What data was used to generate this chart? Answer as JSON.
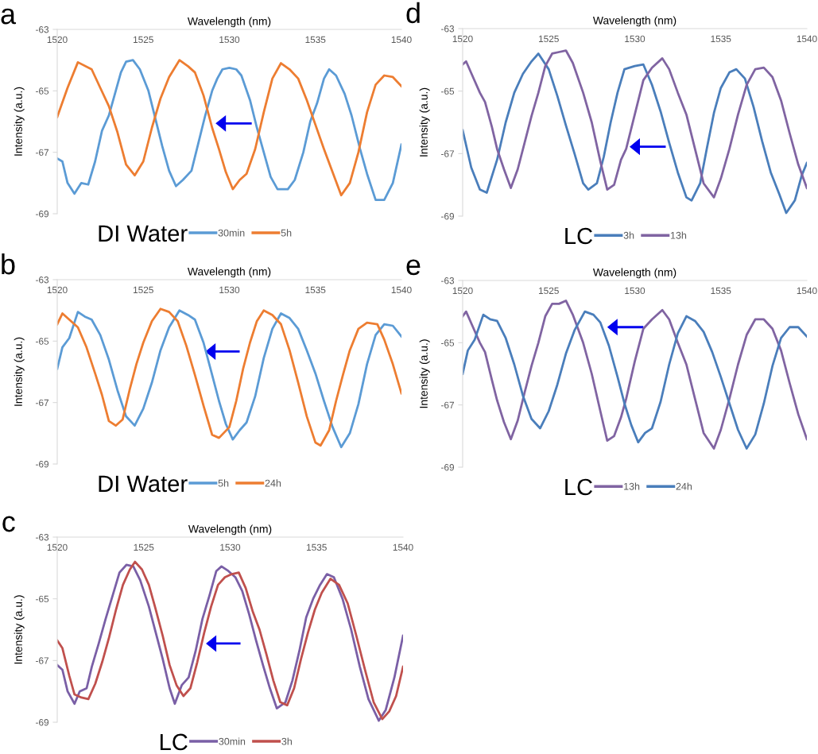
{
  "chart_data": [
    {
      "type": "line",
      "title": "a",
      "xlabel": "Wavelength (nm)",
      "ylabel": "Intensity (a.u.)",
      "legend_title": "DI Water",
      "legend": "bottom",
      "xlim": [
        1520,
        1540
      ],
      "xticks": [
        1520,
        1525,
        1530,
        1535,
        1540
      ],
      "ylim": [
        -69,
        -63
      ],
      "yticks": [
        -63,
        -65,
        -67,
        -69
      ],
      "series": [
        {
          "name": "30min",
          "color": "#5b9bd5",
          "x": [
            1520.0,
            1520.3,
            1520.6,
            1521.0,
            1521.4,
            1521.8,
            1522.2,
            1522.6,
            1523.0,
            1523.4,
            1523.7,
            1524.0,
            1524.4,
            1524.8,
            1525.3,
            1525.7,
            1526.1,
            1526.5,
            1526.9,
            1527.3,
            1527.8,
            1528.2,
            1528.6,
            1529.0,
            1529.3,
            1529.6,
            1530.0,
            1530.4,
            1530.7,
            1531.2,
            1531.6,
            1532.0,
            1532.4,
            1532.8,
            1533.4,
            1533.8,
            1534.3,
            1534.7,
            1535.1,
            1535.5,
            1535.8,
            1536.2,
            1536.7,
            1537.1,
            1537.6,
            1538.0,
            1538.5,
            1539.0,
            1539.5,
            1540.0
          ],
          "values": [
            -67.2,
            -67.3,
            -68.0,
            -68.35,
            -68.0,
            -68.05,
            -67.3,
            -66.3,
            -65.8,
            -65.0,
            -64.4,
            -64.05,
            -64.0,
            -64.3,
            -65.0,
            -65.9,
            -66.8,
            -67.6,
            -68.1,
            -67.9,
            -67.6,
            -66.7,
            -65.8,
            -65.0,
            -64.6,
            -64.3,
            -64.25,
            -64.3,
            -64.5,
            -65.3,
            -66.2,
            -67.0,
            -67.8,
            -68.2,
            -68.2,
            -67.9,
            -67.0,
            -66.0,
            -65.4,
            -64.6,
            -64.3,
            -64.5,
            -65.1,
            -65.8,
            -66.9,
            -67.7,
            -68.55,
            -68.55,
            -68.0,
            -66.75
          ]
        },
        {
          "name": "5h",
          "color": "#ed7d31",
          "x": [
            1520.0,
            1520.6,
            1521.2,
            1522.0,
            1522.5,
            1523.0,
            1523.5,
            1524.0,
            1524.5,
            1525.0,
            1525.5,
            1526.0,
            1526.5,
            1527.1,
            1527.6,
            1528.0,
            1528.5,
            1529.0,
            1529.4,
            1529.8,
            1530.2,
            1530.6,
            1531.0,
            1531.5,
            1532.0,
            1532.5,
            1533.0,
            1533.5,
            1534.0,
            1534.5,
            1535.0,
            1535.5,
            1536.0,
            1536.5,
            1537.0,
            1537.5,
            1538.0,
            1538.5,
            1539.0,
            1539.5,
            1540.0
          ],
          "values": [
            -65.85,
            -64.9,
            -64.07,
            -64.3,
            -64.9,
            -65.5,
            -66.35,
            -67.4,
            -67.75,
            -67.3,
            -66.2,
            -65.25,
            -64.55,
            -64.0,
            -64.2,
            -64.4,
            -65.15,
            -66.2,
            -66.9,
            -67.65,
            -68.2,
            -67.9,
            -67.7,
            -66.9,
            -65.7,
            -64.6,
            -64.1,
            -64.3,
            -64.6,
            -65.3,
            -66.1,
            -66.9,
            -67.65,
            -68.4,
            -68.0,
            -67.0,
            -65.7,
            -64.8,
            -64.5,
            -64.55,
            -64.85
          ]
        }
      ]
    },
    {
      "type": "line",
      "title": "d",
      "xlabel": "Wavelength (nm)",
      "ylabel": "Intensity (a.u.)",
      "legend_title": "LC",
      "legend": "bottom",
      "xlim": [
        1520,
        1540
      ],
      "xticks": [
        1520,
        1525,
        1530,
        1535,
        1540
      ],
      "ylim": [
        -69,
        -63
      ],
      "yticks": [
        -63,
        -65,
        -67,
        -69
      ],
      "series": [
        {
          "name": "3h",
          "color": "#4a7ebb",
          "x": [
            1520.0,
            1520.5,
            1521.0,
            1521.4,
            1522.0,
            1522.5,
            1523.0,
            1523.5,
            1524.0,
            1524.4,
            1525.0,
            1525.5,
            1526.0,
            1526.5,
            1527.0,
            1527.3,
            1527.8,
            1528.2,
            1528.6,
            1529.0,
            1529.4,
            1530.0,
            1530.5,
            1531.0,
            1531.5,
            1532.0,
            1532.5,
            1533.0,
            1533.3,
            1533.8,
            1534.2,
            1534.6,
            1535.0,
            1535.5,
            1535.9,
            1536.4,
            1536.9,
            1537.4,
            1537.9,
            1538.4,
            1538.8,
            1539.3,
            1539.7,
            1540.0
          ],
          "values": [
            -66.25,
            -67.45,
            -68.15,
            -68.25,
            -67.2,
            -66.0,
            -65.05,
            -64.45,
            -64.05,
            -63.8,
            -64.3,
            -65.15,
            -66.1,
            -67.0,
            -67.95,
            -68.15,
            -67.95,
            -67.1,
            -66.0,
            -65.05,
            -64.3,
            -64.2,
            -64.15,
            -64.8,
            -65.65,
            -66.65,
            -67.6,
            -68.4,
            -68.5,
            -67.95,
            -66.8,
            -65.7,
            -64.9,
            -64.4,
            -64.3,
            -64.6,
            -65.5,
            -66.6,
            -67.6,
            -68.3,
            -68.9,
            -68.5,
            -67.7,
            -67.3
          ]
        },
        {
          "name": "13h",
          "color": "#8064a2",
          "x": [
            1520.0,
            1520.2,
            1520.6,
            1521.0,
            1521.3,
            1521.7,
            1522.0,
            1522.4,
            1522.8,
            1523.2,
            1523.6,
            1524.0,
            1524.4,
            1524.8,
            1525.2,
            1525.6,
            1526.0,
            1526.4,
            1527.0,
            1527.5,
            1528.0,
            1528.4,
            1528.8,
            1529.2,
            1529.5,
            1530.0,
            1530.5,
            1531.0,
            1531.6,
            1532.0,
            1532.5,
            1533.0,
            1533.5,
            1534.0,
            1534.6,
            1535.0,
            1535.5,
            1536.0,
            1536.5,
            1537.0,
            1537.5,
            1538.0,
            1538.5,
            1539.0,
            1539.5,
            1540.0
          ],
          "values": [
            -64.15,
            -64.05,
            -64.55,
            -65.05,
            -65.35,
            -66.15,
            -66.85,
            -67.5,
            -68.1,
            -67.5,
            -66.65,
            -65.8,
            -65.05,
            -64.2,
            -63.8,
            -63.75,
            -63.7,
            -64.1,
            -65.05,
            -66.0,
            -67.25,
            -68.15,
            -68.0,
            -67.2,
            -66.85,
            -65.75,
            -64.65,
            -64.25,
            -63.95,
            -64.3,
            -65.05,
            -65.75,
            -66.85,
            -67.95,
            -68.4,
            -67.8,
            -66.85,
            -65.75,
            -64.8,
            -64.3,
            -64.25,
            -64.55,
            -65.3,
            -66.35,
            -67.35,
            -68.1
          ]
        }
      ]
    },
    {
      "type": "line",
      "title": "b",
      "xlabel": "Wavelength (nm)",
      "ylabel": "Intensity (a.u.)",
      "legend_title": "DI Water",
      "legend": "bottom",
      "xlim": [
        1520,
        1540
      ],
      "xticks": [
        1520,
        1525,
        1530,
        1535,
        1540
      ],
      "ylim": [
        -69,
        -63
      ],
      "yticks": [
        -63,
        -65,
        -67,
        -69
      ],
      "series": [
        {
          "name": "5h",
          "color": "#5b9bd5",
          "x": [
            1520.0,
            1520.3,
            1520.7,
            1521.2,
            1521.6,
            1522.0,
            1522.5,
            1523.0,
            1523.5,
            1524.0,
            1524.5,
            1525.0,
            1525.5,
            1526.0,
            1526.5,
            1527.1,
            1527.6,
            1528.0,
            1528.5,
            1529.0,
            1529.4,
            1529.8,
            1530.2,
            1530.6,
            1531.0,
            1531.5,
            1532.0,
            1532.5,
            1533.0,
            1533.5,
            1534.0,
            1534.5,
            1535.0,
            1535.5,
            1536.0,
            1536.5,
            1537.0,
            1537.5,
            1538.0,
            1538.5,
            1539.0,
            1539.5,
            1540.0
          ],
          "values": [
            -65.9,
            -65.2,
            -64.9,
            -64.05,
            -64.2,
            -64.3,
            -64.8,
            -65.6,
            -66.6,
            -67.45,
            -67.75,
            -67.2,
            -66.35,
            -65.3,
            -64.55,
            -64.0,
            -64.15,
            -64.3,
            -65.05,
            -66.1,
            -66.95,
            -67.7,
            -68.2,
            -67.9,
            -67.65,
            -66.8,
            -65.55,
            -64.6,
            -64.1,
            -64.25,
            -64.6,
            -65.3,
            -66.05,
            -66.95,
            -67.8,
            -68.45,
            -68.0,
            -67.05,
            -65.75,
            -64.8,
            -64.45,
            -64.5,
            -64.85
          ]
        },
        {
          "name": "24h",
          "color": "#ed7d31",
          "x": [
            1520.0,
            1520.3,
            1520.7,
            1521.2,
            1521.7,
            1522.2,
            1522.6,
            1523.0,
            1523.4,
            1523.8,
            1524.2,
            1524.6,
            1525.0,
            1525.5,
            1526.0,
            1526.5,
            1527.0,
            1527.5,
            1528.0,
            1528.5,
            1529.0,
            1529.4,
            1530.0,
            1530.4,
            1530.8,
            1531.2,
            1531.6,
            1532.0,
            1532.5,
            1533.0,
            1533.5,
            1534.0,
            1534.5,
            1535.0,
            1535.3,
            1535.8,
            1536.2,
            1536.6,
            1537.0,
            1537.5,
            1538.0,
            1538.6,
            1539.0,
            1539.5,
            1540.0
          ],
          "values": [
            -64.45,
            -64.1,
            -64.3,
            -64.55,
            -65.2,
            -66.05,
            -66.75,
            -67.6,
            -67.75,
            -67.55,
            -66.6,
            -65.75,
            -65.05,
            -64.35,
            -63.95,
            -64.05,
            -64.35,
            -65.15,
            -66.1,
            -67.1,
            -68.05,
            -68.15,
            -67.8,
            -66.95,
            -65.9,
            -65.05,
            -64.35,
            -64.0,
            -64.15,
            -64.45,
            -65.3,
            -66.35,
            -67.45,
            -68.3,
            -68.4,
            -67.9,
            -66.95,
            -66.1,
            -65.3,
            -64.6,
            -64.4,
            -64.45,
            -64.95,
            -65.75,
            -66.7
          ]
        }
      ]
    },
    {
      "type": "line",
      "title": "e",
      "xlabel": "Wavelength (nm)",
      "ylabel": "Intensity (a.u.)",
      "legend_title": "LC",
      "legend": "bottom",
      "xlim": [
        1520,
        1540
      ],
      "xticks": [
        1520,
        1525,
        1530,
        1535,
        1540
      ],
      "ylim": [
        -69,
        -63
      ],
      "yticks": [
        -63,
        -65,
        -67,
        -69
      ],
      "series": [
        {
          "name": "13h",
          "color": "#8064a2",
          "x": [
            1520.0,
            1520.2,
            1520.6,
            1521.0,
            1521.3,
            1521.7,
            1522.0,
            1522.4,
            1522.8,
            1523.2,
            1523.6,
            1524.0,
            1524.4,
            1524.8,
            1525.2,
            1525.6,
            1526.0,
            1526.4,
            1527.0,
            1527.5,
            1528.0,
            1528.4,
            1528.8,
            1529.2,
            1529.5,
            1530.0,
            1530.5,
            1531.0,
            1531.6,
            1532.0,
            1532.5,
            1533.0,
            1533.5,
            1534.0,
            1534.6,
            1535.0,
            1535.5,
            1536.0,
            1536.5,
            1537.0,
            1537.5,
            1538.0,
            1538.5,
            1539.0,
            1539.5,
            1540.0
          ],
          "values": [
            -64.15,
            -64.0,
            -64.5,
            -65.0,
            -65.3,
            -66.2,
            -66.85,
            -67.55,
            -68.1,
            -67.5,
            -66.6,
            -65.75,
            -65.0,
            -64.15,
            -63.75,
            -63.75,
            -63.65,
            -64.1,
            -65.0,
            -66.0,
            -67.2,
            -68.15,
            -68.0,
            -67.4,
            -66.8,
            -65.6,
            -64.55,
            -64.25,
            -63.95,
            -64.25,
            -65.0,
            -65.7,
            -66.8,
            -67.9,
            -68.4,
            -67.8,
            -66.8,
            -65.7,
            -64.75,
            -64.25,
            -64.25,
            -64.55,
            -65.25,
            -66.3,
            -67.3,
            -68.1
          ]
        },
        {
          "name": "24h",
          "color": "#4a7ebb",
          "x": [
            1520.0,
            1520.3,
            1520.7,
            1521.2,
            1521.6,
            1522.0,
            1522.5,
            1523.0,
            1523.5,
            1524.0,
            1524.5,
            1525.0,
            1525.5,
            1526.0,
            1526.5,
            1527.1,
            1527.6,
            1528.0,
            1528.5,
            1529.0,
            1529.4,
            1529.8,
            1530.2,
            1530.6,
            1531.0,
            1531.5,
            1532.0,
            1532.5,
            1533.0,
            1533.5,
            1534.0,
            1534.5,
            1535.0,
            1535.5,
            1536.0,
            1536.5,
            1537.0,
            1537.5,
            1538.0,
            1538.5,
            1539.0,
            1539.5,
            1540.0
          ],
          "values": [
            -66.0,
            -65.25,
            -64.9,
            -64.1,
            -64.25,
            -64.3,
            -64.85,
            -65.7,
            -66.7,
            -67.45,
            -67.75,
            -67.2,
            -66.35,
            -65.35,
            -64.6,
            -64.0,
            -64.1,
            -64.35,
            -65.1,
            -66.1,
            -66.95,
            -67.65,
            -68.2,
            -67.9,
            -67.75,
            -66.9,
            -65.7,
            -64.7,
            -64.15,
            -64.3,
            -64.65,
            -65.3,
            -66.1,
            -66.95,
            -67.8,
            -68.4,
            -67.95,
            -66.95,
            -65.75,
            -64.85,
            -64.5,
            -64.5,
            -64.8
          ]
        }
      ]
    },
    {
      "type": "line",
      "title": "c",
      "xlabel": "Wavelength (nm)",
      "ylabel": "Intensity (a.u.)",
      "legend_title": "LC",
      "legend": "bottom",
      "xlim": [
        1520,
        1540
      ],
      "xticks": [
        1520,
        1525,
        1530,
        1535,
        1540
      ],
      "ylim": [
        -69,
        -63
      ],
      "yticks": [
        -63,
        -65,
        -67,
        -69
      ],
      "series": [
        {
          "name": "30min",
          "color": "#7a5fa6",
          "x": [
            1520.0,
            1520.3,
            1520.6,
            1521.0,
            1521.3,
            1521.7,
            1522.0,
            1522.4,
            1522.8,
            1523.2,
            1523.6,
            1524.0,
            1524.4,
            1524.8,
            1525.3,
            1525.7,
            1526.1,
            1526.5,
            1526.8,
            1527.2,
            1527.6,
            1528.0,
            1528.4,
            1528.8,
            1529.2,
            1529.5,
            1529.9,
            1530.3,
            1530.7,
            1531.1,
            1531.5,
            1531.9,
            1532.3,
            1532.7,
            1533.2,
            1533.6,
            1534.0,
            1534.4,
            1534.8,
            1535.2,
            1535.6,
            1536.0,
            1536.5,
            1537.0,
            1537.5,
            1538.0,
            1538.6,
            1539.0,
            1539.5,
            1540.0
          ],
          "values": [
            -67.15,
            -67.3,
            -68.0,
            -68.4,
            -68.0,
            -67.9,
            -67.2,
            -66.45,
            -65.65,
            -64.9,
            -64.15,
            -63.9,
            -63.95,
            -64.4,
            -65.25,
            -66.1,
            -66.95,
            -67.9,
            -68.4,
            -67.8,
            -67.55,
            -66.7,
            -65.65,
            -64.9,
            -64.1,
            -63.95,
            -64.1,
            -64.3,
            -64.75,
            -65.5,
            -66.35,
            -67.15,
            -67.9,
            -68.55,
            -68.35,
            -67.65,
            -66.7,
            -65.6,
            -65.0,
            -64.55,
            -64.2,
            -64.3,
            -65.0,
            -66.0,
            -67.2,
            -68.25,
            -68.95,
            -68.6,
            -67.55,
            -66.2
          ]
        },
        {
          "name": "3h",
          "color": "#c0504d",
          "x": [
            1520.0,
            1520.3,
            1520.7,
            1521.0,
            1521.4,
            1521.8,
            1522.2,
            1522.6,
            1523.0,
            1523.4,
            1523.8,
            1524.2,
            1524.5,
            1524.9,
            1525.3,
            1525.7,
            1526.1,
            1526.5,
            1526.9,
            1527.3,
            1527.7,
            1528.1,
            1528.5,
            1528.9,
            1529.3,
            1529.7,
            1530.1,
            1530.5,
            1530.9,
            1531.3,
            1531.7,
            1532.1,
            1532.5,
            1532.9,
            1533.3,
            1533.7,
            1534.1,
            1534.5,
            1534.9,
            1535.3,
            1535.8,
            1536.3,
            1536.8,
            1537.3,
            1537.8,
            1538.3,
            1538.8,
            1539.2,
            1539.6,
            1540.0
          ],
          "values": [
            -66.35,
            -66.6,
            -67.5,
            -68.1,
            -68.2,
            -68.25,
            -67.75,
            -67.05,
            -66.25,
            -65.35,
            -64.55,
            -64.05,
            -63.8,
            -64.05,
            -64.55,
            -65.35,
            -66.2,
            -67.15,
            -67.8,
            -68.15,
            -67.9,
            -67.05,
            -66.1,
            -65.25,
            -64.55,
            -64.3,
            -64.2,
            -64.15,
            -64.65,
            -65.4,
            -66.0,
            -66.8,
            -67.65,
            -68.35,
            -68.45,
            -67.9,
            -66.95,
            -66.1,
            -65.35,
            -64.8,
            -64.35,
            -64.55,
            -65.15,
            -66.2,
            -67.3,
            -68.35,
            -68.9,
            -68.65,
            -68.15,
            -67.2
          ]
        }
      ]
    }
  ]
}
